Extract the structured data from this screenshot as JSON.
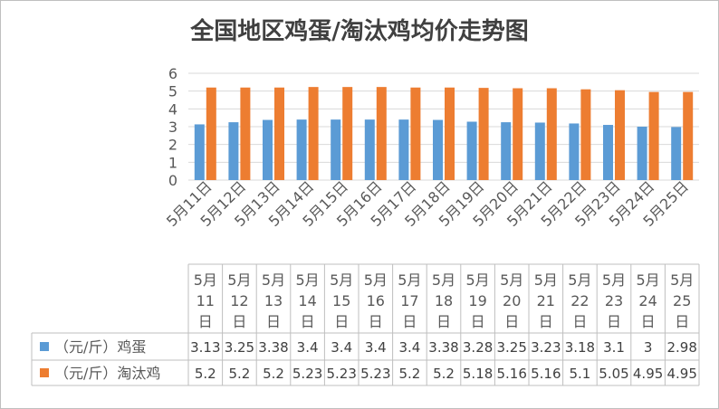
{
  "chart_data": {
    "type": "bar",
    "title": "全国地区鸡蛋/淘汰鸡均价走势图",
    "xlabel": "",
    "ylabel": "",
    "ylim": [
      0,
      6
    ],
    "yticks": [
      "0",
      "1",
      "2",
      "3",
      "4",
      "5",
      "6"
    ],
    "grid": true,
    "legend_placement": "data-table-left",
    "categories": [
      "5月11日",
      "5月12日",
      "5月13日",
      "5月14日",
      "5月15日",
      "5月16日",
      "5月17日",
      "5月18日",
      "5月19日",
      "5月20日",
      "5月21日",
      "5月22日",
      "5月23日",
      "5月24日",
      "5月25日"
    ],
    "table_headers": [
      [
        "5月",
        "11",
        "日"
      ],
      [
        "5月",
        "12",
        "日"
      ],
      [
        "5月",
        "13",
        "日"
      ],
      [
        "5月",
        "14",
        "日"
      ],
      [
        "5月",
        "15",
        "日"
      ],
      [
        "5月",
        "16",
        "日"
      ],
      [
        "5月",
        "17",
        "日"
      ],
      [
        "5月",
        "18",
        "日"
      ],
      [
        "5月",
        "19",
        "日"
      ],
      [
        "5月",
        "20",
        "日"
      ],
      [
        "5月",
        "21",
        "日"
      ],
      [
        "5月",
        "22",
        "日"
      ],
      [
        "5月",
        "23",
        "日"
      ],
      [
        "5月",
        "24",
        "日"
      ],
      [
        "5月",
        "25",
        "日"
      ]
    ],
    "series": [
      {
        "name": "（元/斤）鸡蛋",
        "color": "#5b9bd5",
        "values": [
          3.13,
          3.25,
          3.38,
          3.4,
          3.4,
          3.4,
          3.4,
          3.38,
          3.28,
          3.25,
          3.23,
          3.18,
          3.1,
          3,
          2.98
        ],
        "labels": [
          "3.13",
          "3.25",
          "3.38",
          "3.4",
          "3.4",
          "3.4",
          "3.4",
          "3.38",
          "3.28",
          "3.25",
          "3.23",
          "3.18",
          "3.1",
          "3",
          "2.98"
        ]
      },
      {
        "name": "（元/斤）淘汰鸡",
        "color": "#ed7d31",
        "values": [
          5.2,
          5.2,
          5.2,
          5.23,
          5.23,
          5.23,
          5.2,
          5.2,
          5.18,
          5.16,
          5.16,
          5.1,
          5.05,
          4.95,
          4.95
        ],
        "labels": [
          "5.2",
          "5.2",
          "5.2",
          "5.23",
          "5.23",
          "5.23",
          "5.2",
          "5.2",
          "5.18",
          "5.16",
          "5.16",
          "5.1",
          "5.05",
          "4.95",
          "4.95"
        ]
      }
    ]
  }
}
